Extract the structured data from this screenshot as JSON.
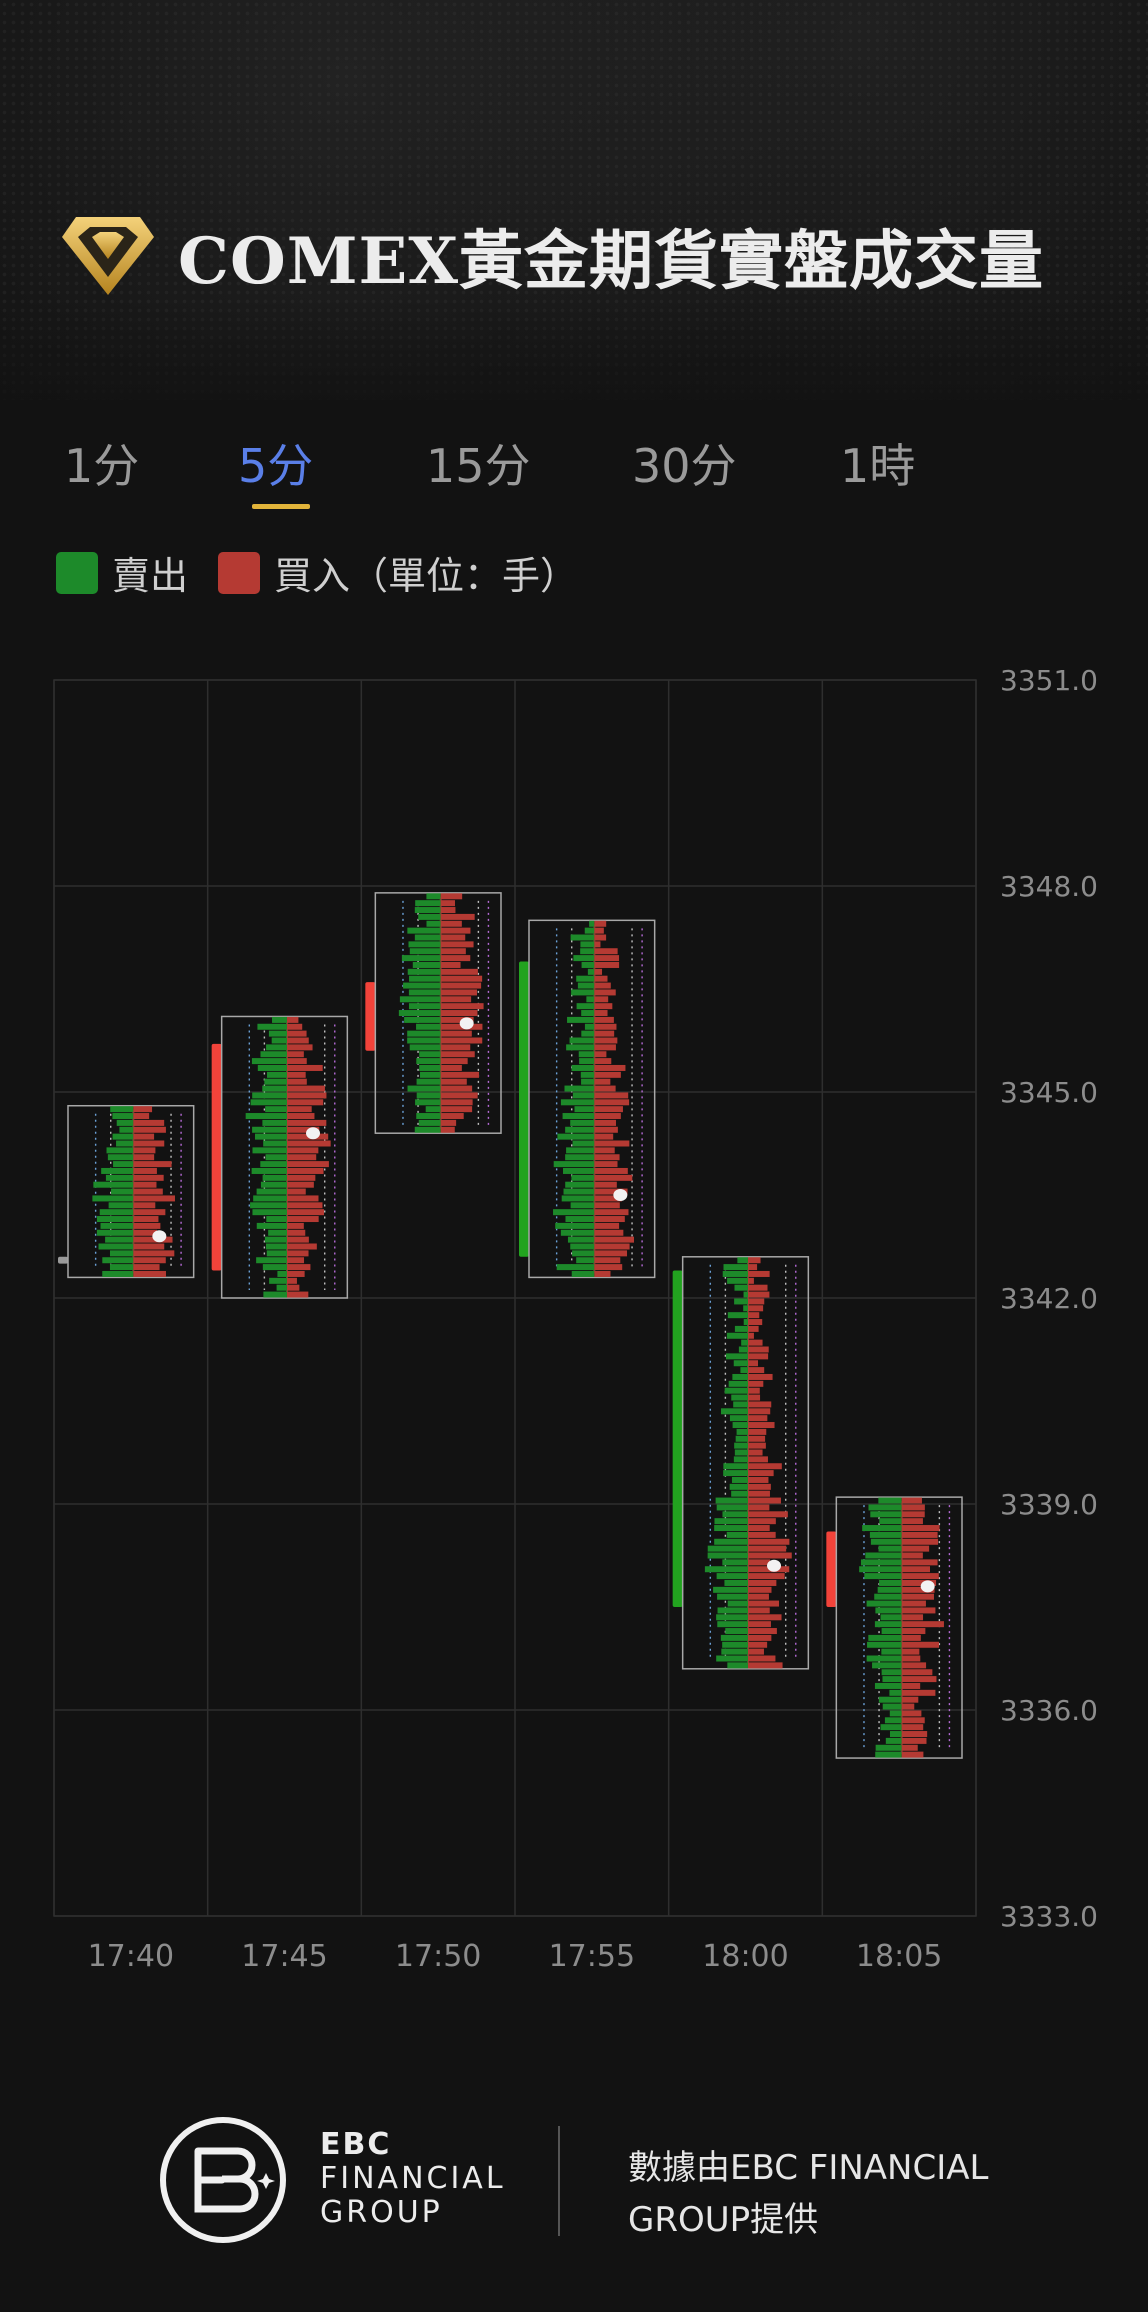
{
  "header": {
    "title": "COMEX黃金期貨實盤成交量"
  },
  "tabs": [
    {
      "label": "1分",
      "active": false
    },
    {
      "label": "5分",
      "active": true
    },
    {
      "label": "15分",
      "active": false
    },
    {
      "label": "30分",
      "active": false
    },
    {
      "label": "1時",
      "active": false
    }
  ],
  "legend": {
    "sell_label": "賣出",
    "buy_label": "買入（單位：手）",
    "sell_color": "#1d8a2a",
    "buy_color": "#b53a33"
  },
  "chart_data": {
    "type": "candlestick-footprint",
    "categories": [
      "17:40",
      "17:45",
      "17:50",
      "17:55",
      "18:00",
      "18:05"
    ],
    "y_ticks": [
      "3351.0",
      "3348.0",
      "3345.0",
      "3342.0",
      "3339.0",
      "3336.0",
      "3333.0"
    ],
    "ylim": [
      3333.0,
      3351.0
    ],
    "grid": true,
    "candles": [
      {
        "time": "17:40",
        "open": 3342.5,
        "close": 3342.6,
        "range_low": 3342.3,
        "range_high": 3344.8,
        "poc": 3342.9,
        "direction": "flat"
      },
      {
        "time": "17:45",
        "open": 3342.4,
        "close": 3345.7,
        "range_low": 3342.0,
        "range_high": 3346.1,
        "poc": 3344.4,
        "direction": "up"
      },
      {
        "time": "17:50",
        "open": 3345.6,
        "close": 3346.6,
        "range_low": 3344.4,
        "range_high": 3347.9,
        "poc": 3346.0,
        "direction": "up"
      },
      {
        "time": "17:55",
        "open": 3346.9,
        "close": 3342.6,
        "range_low": 3342.3,
        "range_high": 3347.5,
        "poc": 3343.5,
        "direction": "down"
      },
      {
        "time": "18:00",
        "open": 3342.4,
        "close": 3337.5,
        "range_low": 3336.6,
        "range_high": 3342.6,
        "poc": 3338.1,
        "direction": "down"
      },
      {
        "time": "18:05",
        "open": 3337.5,
        "close": 3338.6,
        "range_low": 3335.3,
        "range_high": 3339.1,
        "poc": 3337.8,
        "direction": "up"
      }
    ]
  },
  "footer": {
    "brand_line1": "EBC",
    "brand_line2": "FINANCIAL",
    "brand_line3": "GROUP",
    "note": "數據由EBC FINANCIAL GROUP提供"
  }
}
